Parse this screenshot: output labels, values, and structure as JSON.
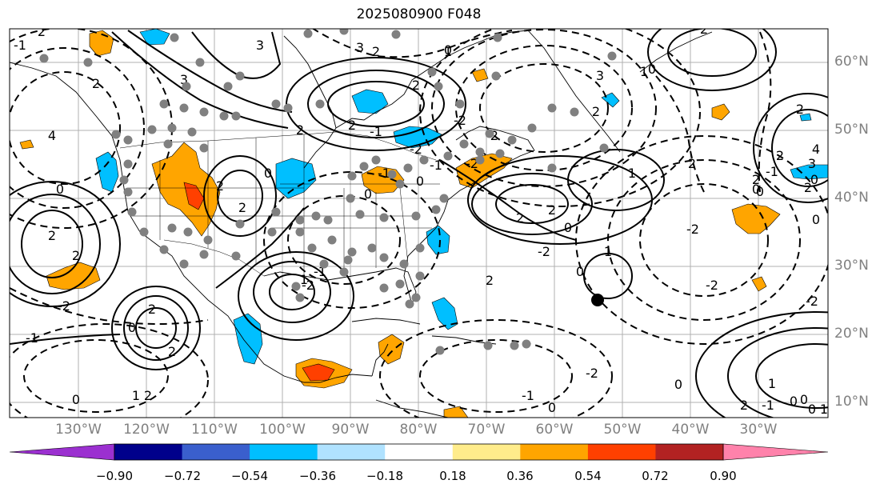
{
  "title": "2025080900 F048",
  "lat_labels": [
    "60°N",
    "50°N",
    "40°N",
    "30°N",
    "20°N",
    "10°N"
  ],
  "lon_labels": [
    "130°W",
    "120°W",
    "110°W",
    "100°W",
    "90°W",
    "80°W",
    "70°W",
    "60°W",
    "50°W",
    "40°W",
    "30°W"
  ],
  "colorbar": {
    "ticks": [
      "−0.90",
      "−0.72",
      "−0.54",
      "−0.36",
      "−0.18",
      "0.18",
      "0.36",
      "0.54",
      "0.72",
      "0.90"
    ],
    "colors": [
      "#9b30d0",
      "#00008b",
      "#3a5fcd",
      "#00bfff",
      "#b0e2ff",
      "#ffffff",
      "#ffec8b",
      "#ffa500",
      "#ff4000",
      "#b22222",
      "#ff82ab"
    ]
  },
  "contour_labels": [
    "2",
    "3",
    "0",
    "-1",
    "2",
    "2",
    "2",
    "-1",
    "2",
    "0",
    "2",
    "3",
    "2",
    "0",
    "4",
    "2",
    "3",
    "-2",
    "0",
    "-1",
    "2",
    "0",
    "2",
    "1",
    "2",
    "0",
    "0",
    "2",
    "3",
    "1",
    "-2",
    "1",
    "2",
    "2",
    "0",
    "1",
    "0",
    "2",
    "0",
    "-1",
    "-2",
    "4",
    "3",
    "2",
    "2",
    "2",
    "-2",
    "0",
    "2",
    "2",
    "1",
    "-2",
    "-1",
    "0",
    "2",
    "1",
    "2",
    "0",
    "-2",
    "2",
    "2",
    "0",
    "-2",
    "-1",
    "0",
    "-1",
    "-2",
    "0",
    "-1",
    "-2",
    "-2",
    "-2",
    "0",
    "-1",
    "0",
    "1",
    "0",
    "1"
  ],
  "markers": {
    "grey_count": 96,
    "highlight_count": 1
  }
}
